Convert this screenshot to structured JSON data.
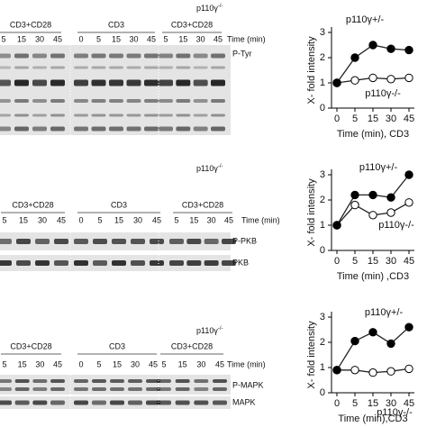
{
  "panels": [
    {
      "title": "p110γ",
      "title_sup": "-/-",
      "groups": [
        "CD3+CD28",
        "CD3",
        "CD3+CD28"
      ],
      "time_label": "Time (min)",
      "lanes": [
        [
          "5",
          "15",
          "30",
          "45"
        ],
        [
          "0",
          "5",
          "15",
          "30",
          "45"
        ],
        [
          "5",
          "15",
          "30",
          "45"
        ]
      ],
      "blots": [
        "P-Tyr"
      ]
    },
    {
      "title": "p110γ",
      "title_sup": "-/-",
      "groups": [
        "CD3+CD28",
        "CD3",
        "CD3+CD28"
      ],
      "time_label": "Time (min)",
      "lanes": [
        [
          "5",
          "15",
          "30",
          "45"
        ],
        [
          "0",
          "5",
          "15",
          "30",
          "45"
        ],
        [
          "5",
          "15",
          "30",
          "45"
        ]
      ],
      "blots": [
        "P-PKB",
        "PKB"
      ]
    },
    {
      "title": "p110γ",
      "title_sup": "-/-",
      "groups": [
        "CD3+CD28",
        "CD3",
        "CD3+CD28"
      ],
      "time_label": "Time (min)",
      "lanes": [
        [
          "5",
          "15",
          "30",
          "45"
        ],
        [
          "0",
          "5",
          "15",
          "30",
          "45"
        ],
        [
          "5",
          "15",
          "30",
          "45"
        ]
      ],
      "blots": [
        "P-MAPK",
        "MAPK"
      ]
    }
  ],
  "chart_data": [
    {
      "type": "line",
      "y_label": "X- fold intensity",
      "x_label": "Time (min), CD3",
      "categories": [
        "0",
        "5",
        "15",
        "30",
        "45"
      ],
      "ylim": [
        0,
        3
      ],
      "yticks": [
        0,
        1,
        2,
        3
      ],
      "series": [
        {
          "name": "p110γ+/-",
          "color": "#000000",
          "values": [
            1,
            2,
            2.5,
            2.35,
            2.3
          ]
        },
        {
          "name": "p110γ-/-",
          "color": "#ffffff",
          "values": [
            1,
            1.1,
            1.2,
            1.15,
            1.2
          ]
        }
      ]
    },
    {
      "type": "line",
      "y_label": "X- fold intensity",
      "x_label": "Time (min) ,CD3",
      "categories": [
        "0",
        "5",
        "15",
        "30",
        "45"
      ],
      "ylim": [
        0,
        3
      ],
      "yticks": [
        0,
        1,
        2,
        3
      ],
      "series": [
        {
          "name": "p110γ+/-",
          "color": "#000000",
          "values": [
            1,
            2.2,
            2.2,
            2.1,
            3
          ]
        },
        {
          "name": "p110γ-/-",
          "color": "#ffffff",
          "values": [
            1,
            1.8,
            1.4,
            1.5,
            1.9
          ]
        }
      ]
    },
    {
      "type": "line",
      "y_label": "X- fold intensity",
      "x_label": "Time (min),CD3",
      "categories": [
        "0",
        "5",
        "15",
        "30",
        "45"
      ],
      "ylim": [
        0,
        3
      ],
      "yticks": [
        0,
        1,
        2,
        3
      ],
      "series": [
        {
          "name": "p110γ+/-",
          "color": "#000000",
          "values": [
            0.9,
            2.05,
            2.4,
            1.95,
            2.6
          ]
        },
        {
          "name": "p110γ-/-",
          "color": "#ffffff",
          "values": [
            0.9,
            0.9,
            0.8,
            0.85,
            0.95
          ]
        }
      ]
    }
  ]
}
